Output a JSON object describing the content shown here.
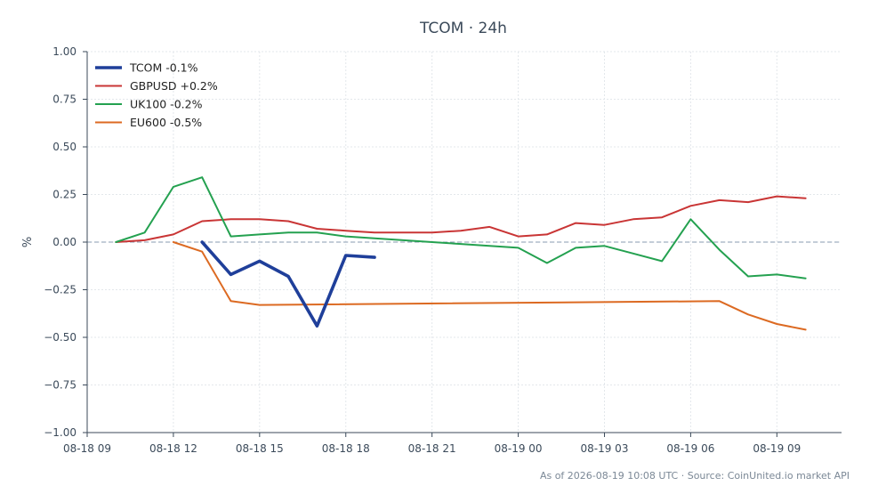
{
  "chart_data": {
    "type": "line",
    "title": "TCOM · 24h",
    "xlabel": "",
    "ylabel": "%",
    "ylim": [
      -1.0,
      1.0
    ],
    "xlim": [
      "2026-08-18 09:00",
      "2026-08-19 11:15"
    ],
    "y_ticks": [
      "1.00",
      "0.75",
      "0.50",
      "0.25",
      "0.00",
      "−0.25",
      "−0.50",
      "−0.75",
      "−1.00"
    ],
    "x_ticks": [
      "08-18 09",
      "08-18 12",
      "08-18 15",
      "08-18 18",
      "08-18 21",
      "08-19 00",
      "08-19 03",
      "08-19 06",
      "08-19 09"
    ],
    "grid": true,
    "zero_line": true,
    "legend_position": "top-left",
    "series": [
      {
        "name": "TCOM -0.1%",
        "color": "#1f3f9a",
        "emphasis": true,
        "x": [
          "2026-08-18 13:00",
          "2026-08-18 14:00",
          "2026-08-18 15:00",
          "2026-08-18 16:00",
          "2026-08-18 17:00",
          "2026-08-18 18:00",
          "2026-08-18 19:00"
        ],
        "y": [
          0.0,
          -0.17,
          -0.1,
          -0.18,
          -0.44,
          -0.07,
          -0.08
        ]
      },
      {
        "name": "GBPUSD +0.2%",
        "color": "#c93535",
        "x": [
          "2026-08-18 10:00",
          "2026-08-18 11:00",
          "2026-08-18 12:00",
          "2026-08-18 13:00",
          "2026-08-18 14:00",
          "2026-08-18 15:00",
          "2026-08-18 16:00",
          "2026-08-18 17:00",
          "2026-08-18 18:00",
          "2026-08-18 19:00",
          "2026-08-18 20:00",
          "2026-08-18 21:00",
          "2026-08-18 22:00",
          "2026-08-18 23:00",
          "2026-08-19 00:00",
          "2026-08-19 01:00",
          "2026-08-19 02:00",
          "2026-08-19 03:00",
          "2026-08-19 04:00",
          "2026-08-19 05:00",
          "2026-08-19 06:00",
          "2026-08-19 07:00",
          "2026-08-19 08:00",
          "2026-08-19 09:00",
          "2026-08-19 10:00"
        ],
        "y": [
          0.0,
          0.01,
          0.04,
          0.11,
          0.12,
          0.12,
          0.11,
          0.07,
          0.06,
          0.05,
          0.05,
          0.05,
          0.06,
          0.08,
          0.03,
          0.04,
          0.1,
          0.09,
          0.12,
          0.13,
          0.19,
          0.22,
          0.21,
          0.24,
          0.23
        ]
      },
      {
        "name": "UK100 -0.2%",
        "color": "#24a150",
        "x": [
          "2026-08-18 10:00",
          "2026-08-18 11:00",
          "2026-08-18 12:00",
          "2026-08-18 13:00",
          "2026-08-18 14:00",
          "2026-08-18 15:00",
          "2026-08-18 16:00",
          "2026-08-18 17:00",
          "2026-08-18 18:00",
          "2026-08-18 19:00",
          "2026-08-18 20:00",
          "2026-08-18 21:00",
          "2026-08-18 22:00",
          "2026-08-18 23:00",
          "2026-08-19 00:00",
          "2026-08-19 01:00",
          "2026-08-19 02:00",
          "2026-08-19 03:00",
          "2026-08-19 04:00",
          "2026-08-19 05:00",
          "2026-08-19 06:00",
          "2026-08-19 07:00",
          "2026-08-19 08:00",
          "2026-08-19 09:00",
          "2026-08-19 10:00"
        ],
        "y": [
          0.0,
          0.05,
          0.29,
          0.34,
          0.03,
          0.04,
          0.05,
          0.05,
          0.03,
          0.02,
          0.01,
          0.0,
          -0.01,
          -0.02,
          -0.03,
          -0.11,
          -0.03,
          -0.02,
          -0.06,
          -0.1,
          0.12,
          -0.04,
          -0.18,
          -0.17,
          -0.19
        ]
      },
      {
        "name": "EU600 -0.5%",
        "color": "#dc6a22",
        "x": [
          "2026-08-18 12:00",
          "2026-08-18 13:00",
          "2026-08-18 14:00",
          "2026-08-18 15:00",
          "2026-08-19 07:00",
          "2026-08-19 08:00",
          "2026-08-19 09:00",
          "2026-08-19 10:00"
        ],
        "y": [
          0.0,
          -0.05,
          -0.31,
          -0.33,
          -0.31,
          -0.38,
          -0.43,
          -0.46
        ]
      }
    ]
  },
  "footer": "As of 2026-08-19 10:08 UTC · Source: CoinUnited.io market API"
}
